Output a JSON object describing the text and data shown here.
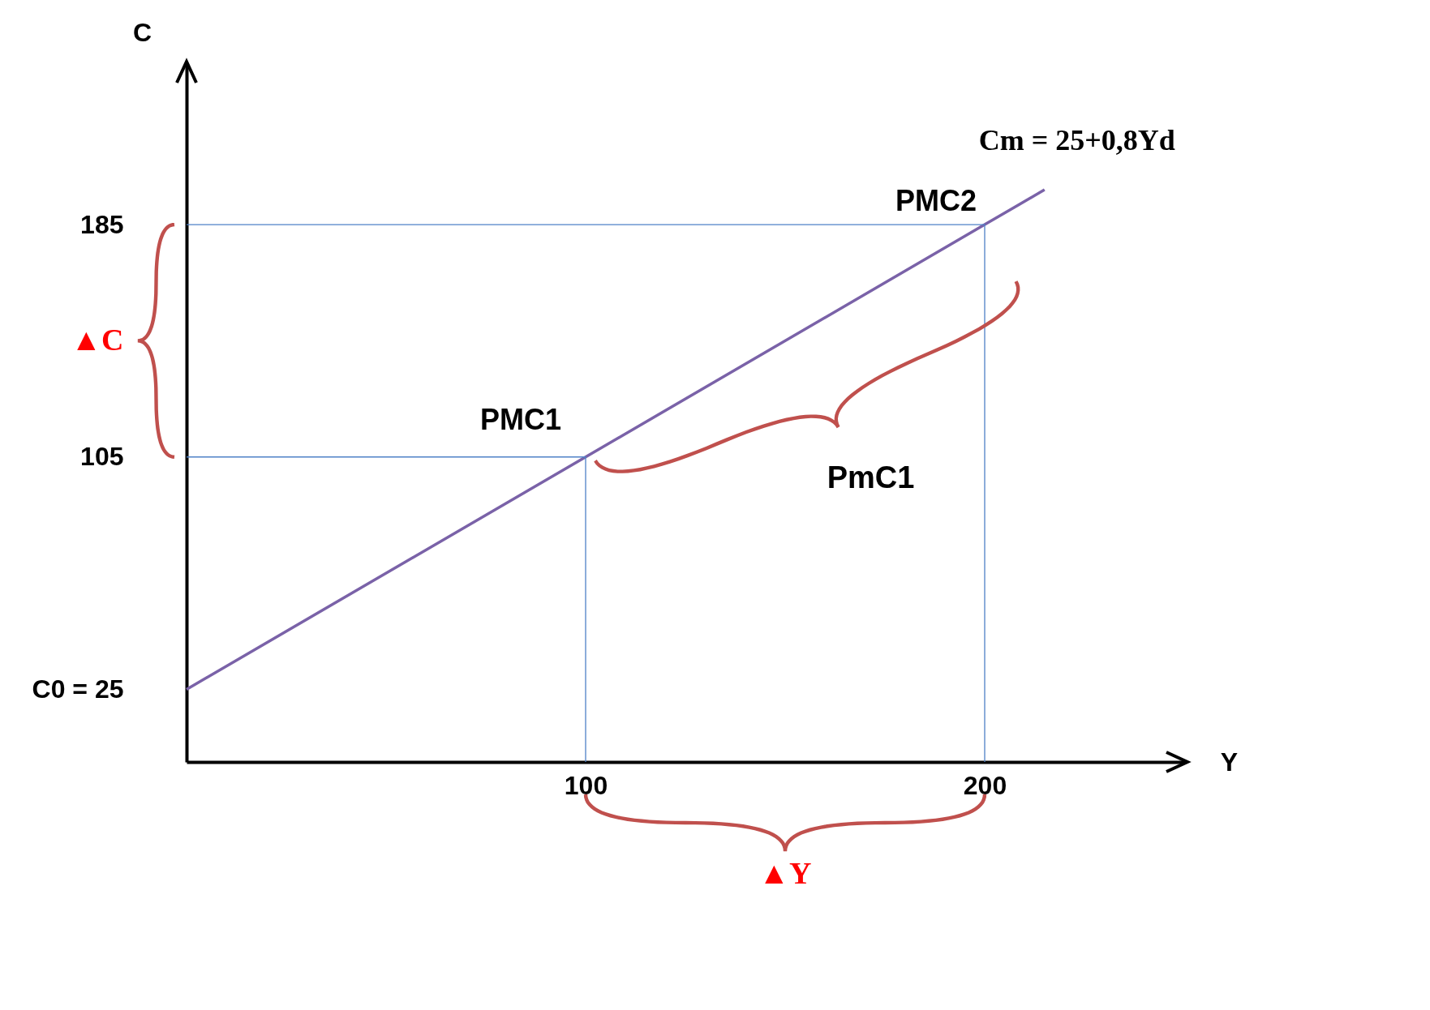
{
  "chart_data": {
    "type": "line",
    "xlabel": "Y",
    "ylabel": "C",
    "series": [
      {
        "color": "#7a62a8",
        "x": [
          0,
          100,
          200,
          215
        ],
        "values": [
          25,
          105,
          185,
          197
        ]
      },
      {
        "color": "#4f81c7",
        "x": [
          0,
          100,
          100
        ],
        "values": [
          105,
          105,
          0
        ]
      },
      {
        "color": "#4f81c7",
        "x": [
          0,
          200,
          200
        ],
        "values": [
          185,
          185,
          0
        ]
      }
    ],
    "xlim": [
      0,
      250
    ],
    "xticks": [
      100,
      200
    ],
    "ylim": [
      0,
      240
    ],
    "yticks": [
      {
        "value": 25,
        "label": "C0 = 25"
      },
      105,
      185
    ],
    "grid": false,
    "marker": "none",
    "annotations": [
      {
        "text": "Cm = 25+0,8Yd",
        "x": 215,
        "y": 197
      },
      {
        "text": "PMC1",
        "x": 100,
        "y": 105
      },
      {
        "text": "PMC2",
        "x": 200,
        "y": 185
      },
      "PmC1",
      "▲C",
      "▲Y"
    ]
  }
}
